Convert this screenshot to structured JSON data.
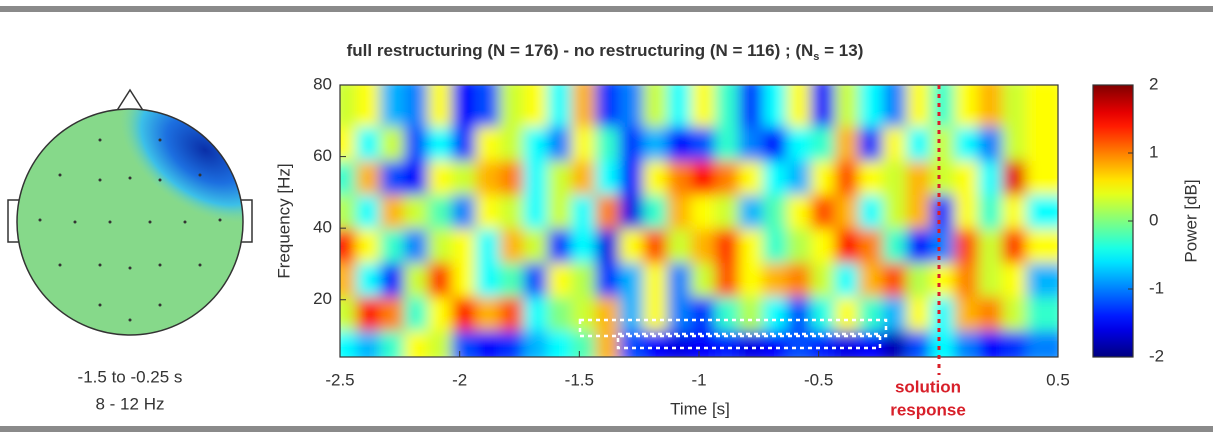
{
  "chart_data": {
    "type": "heatmap",
    "title": "full restructuring (N = 176)  - no restructuring (N = 116) ; (N",
    "title_subscript": "s",
    "title_end": " = 13)",
    "topomap_labels": [
      "-1.5 to -0.25 s",
      "8 - 12 Hz"
    ],
    "xlabel": "Time [s]",
    "ylabel": "Frequency [Hz]",
    "colorbar_label": "Power [dB]",
    "annotation": [
      "solution",
      "response"
    ],
    "colormap": "jet",
    "xlim": [
      -2.5,
      0.5
    ],
    "xticks": [
      -2.5,
      -2,
      -1.5,
      -1,
      -0.5,
      0.5
    ],
    "ylim": [
      4,
      80
    ],
    "yticks": [
      20,
      40,
      60,
      80
    ],
    "clim": [
      -2,
      2
    ],
    "cticks": [
      2,
      1,
      0,
      -1,
      -2
    ],
    "x": [
      -2.45,
      -2.35,
      -2.25,
      -2.15,
      -2.05,
      -1.95,
      -1.85,
      -1.75,
      -1.65,
      -1.55,
      -1.45,
      -1.35,
      -1.25,
      -1.15,
      -1.05,
      -0.95,
      -0.85,
      -0.75,
      -0.65,
      -0.55,
      -0.45,
      -0.35,
      -0.25,
      -0.15,
      -0.05,
      0.05,
      0.15,
      0.25,
      0.35,
      0.45
    ],
    "y": [
      8.75,
      18.25,
      27.75,
      37.25,
      46.75,
      56.25,
      65.75,
      75.25
    ],
    "values": [
      [
        -0.5,
        -0.8,
        -0.3,
        0.5,
        0.3,
        -1.2,
        -1.5,
        -1.3,
        -0.8,
        -0.5,
        -0.2,
        0.8,
        -1.2,
        -1.5,
        -1.6,
        -1.5,
        -1.4,
        -1.6,
        -1.5,
        -1.2,
        -1.4,
        -1.6,
        -1.5,
        -1.8,
        -1.2,
        -0.5,
        -1.0,
        -1.5,
        -1.3,
        -1.0
      ],
      [
        0.3,
        1.5,
        1.0,
        -0.3,
        0.5,
        1.5,
        0.8,
        1.2,
        -0.5,
        0,
        0.3,
        0.8,
        -0.8,
        0.5,
        -1.0,
        -1.3,
        -0.3,
        0.2,
        -0.5,
        -1.2,
        -0.4,
        0.5,
        -0.3,
        -0.8,
        0.5,
        -0.5,
        0.8,
        1.0,
        0.3,
        -0.3
      ],
      [
        0.8,
        -0.5,
        -1.5,
        0.3,
        1.3,
        0.5,
        -0.5,
        -0.2,
        -1.2,
        0.5,
        0.2,
        -1.3,
        -0.8,
        0.5,
        -1.0,
        0.3,
        1.2,
        0.5,
        0.8,
        1.0,
        0.3,
        -0.5,
        0.8,
        1.2,
        0.2,
        0.5,
        1.0,
        0.3,
        0.5,
        -0.8
      ],
      [
        1.5,
        0.5,
        -0.3,
        -1.0,
        0.3,
        0.5,
        -0.5,
        0.8,
        0.3,
        -1.3,
        -0.5,
        -1.6,
        0.5,
        1.2,
        0.3,
        0.8,
        1.3,
        0.5,
        -0.3,
        0.2,
        0.5,
        1.5,
        1.0,
        -0.3,
        -1.5,
        -1.0,
        1.2,
        0.3,
        1.3,
        0.5
      ],
      [
        0.2,
        -0.5,
        0.8,
        0.3,
        -0.2,
        -1.0,
        0.5,
        0.3,
        -0.5,
        0.3,
        -0.5,
        1.0,
        -1.6,
        -0.3,
        0.8,
        0.5,
        0.3,
        -0.8,
        -0.2,
        0.5,
        1.2,
        0.8,
        -0.5,
        0.3,
        0.8,
        -1.3,
        0.5,
        -0.3,
        0.5,
        -0.5
      ],
      [
        -0.3,
        0.8,
        -1.2,
        -1.5,
        0.5,
        0.3,
        0.8,
        1.0,
        -0.5,
        0.3,
        0.8,
        -0.5,
        -1.5,
        0.5,
        1.0,
        1.5,
        1.0,
        0.5,
        -0.5,
        -0.8,
        0.5,
        1.2,
        0.5,
        0.3,
        0.8,
        0.3,
        0.5,
        -0.5,
        1.6,
        0.5
      ],
      [
        0.5,
        -0.5,
        0.3,
        -1.2,
        -0.5,
        -1.3,
        0.5,
        0.3,
        -0.5,
        -1.0,
        0.5,
        -0.3,
        -1.3,
        -0.8,
        -1.5,
        -1.2,
        -0.3,
        -1.0,
        -1.5,
        -0.5,
        -0.3,
        0.8,
        -1.3,
        0.5,
        -0.5,
        0.3,
        -0.5,
        -1.0,
        0.3,
        0.5
      ],
      [
        0.3,
        0.5,
        -0.8,
        -1.0,
        0.5,
        -1.5,
        -1.2,
        0.3,
        0.5,
        -0.5,
        0.8,
        -1.3,
        -1.0,
        0.3,
        -0.5,
        0.5,
        -0.3,
        -1.3,
        -0.5,
        0.5,
        -1.5,
        0.3,
        -0.5,
        -1.0,
        0.5,
        -0.3,
        0.5,
        0.8,
        0.3,
        0.5
      ]
    ]
  }
}
